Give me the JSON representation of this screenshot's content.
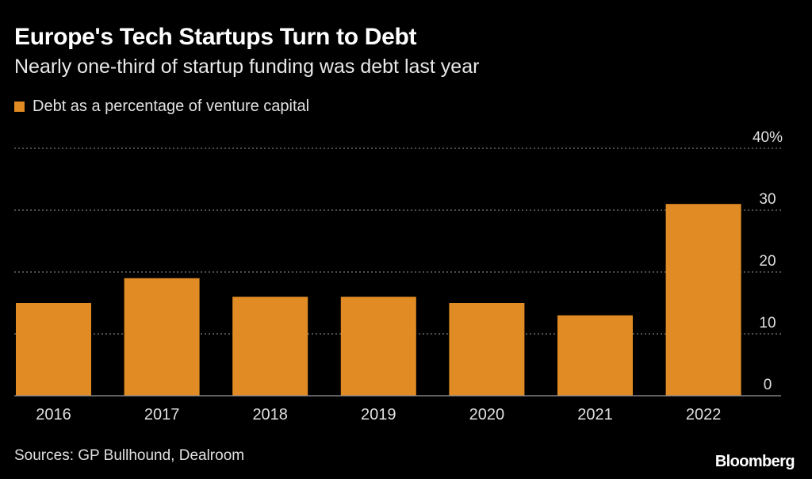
{
  "title": "Europe's Tech Startups Turn to Debt",
  "subtitle": "Nearly one-third of startup funding was debt last year",
  "legend": {
    "label": "Debt as a percentage of venture capital",
    "color": "#e08b23"
  },
  "source": "Sources: GP Bullhound, Dealroom",
  "brand": "Bloomberg",
  "colors": {
    "bar": "#e08b23",
    "grid": "#7a7a7a",
    "text": "#e0e0e0",
    "background": "#000000"
  },
  "chart_data": {
    "type": "bar",
    "title": "Europe's Tech Startups Turn to Debt",
    "subtitle": "Nearly one-third of startup funding was debt last year",
    "categories": [
      "2016",
      "2017",
      "2018",
      "2019",
      "2020",
      "2021",
      "2022"
    ],
    "series": [
      {
        "name": "Debt as a percentage of venture capital",
        "values": [
          15,
          19,
          16,
          16,
          15,
          13,
          31
        ]
      }
    ],
    "ylim": [
      0,
      40
    ],
    "yticks": [
      0,
      10,
      20,
      30,
      40
    ],
    "ytick_labels": [
      "0",
      "10",
      "20",
      "30",
      "40%"
    ],
    "xlabel": "",
    "ylabel": "",
    "grid": true,
    "legend_position": "top-left"
  }
}
